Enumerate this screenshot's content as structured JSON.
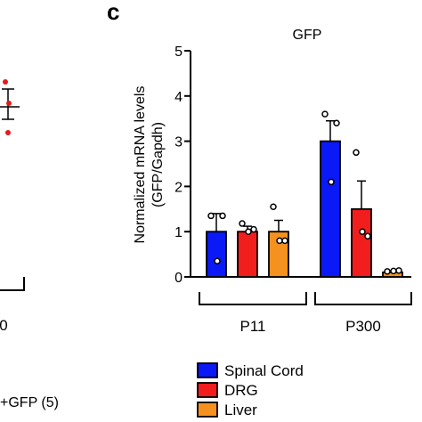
{
  "panel_label": "c",
  "left_fragment": {
    "tick_label": "0",
    "legend_label": "+GFP (5)"
  },
  "chart_data": {
    "type": "bar",
    "title": "GFP",
    "ylabel_line1": "Normalized mRNA levels",
    "ylabel_line2": "(GFP/Gapdh)",
    "ylim": [
      0,
      5
    ],
    "yticks": [
      "0",
      "1",
      "2",
      "3",
      "4",
      "5"
    ],
    "groups": [
      "P11",
      "P300"
    ],
    "series": [
      {
        "name": "Spinal Cord",
        "color": "#0a19f5",
        "values": [
          1.0,
          3.0
        ],
        "errors": [
          0.4,
          0.45
        ],
        "points": [
          [
            1.35,
            0.35,
            1.35
          ],
          [
            3.6,
            2.1,
            3.4
          ]
        ]
      },
      {
        "name": "DRG",
        "color": "#f21d1d",
        "values": [
          1.0,
          1.5
        ],
        "errors": [
          0.12,
          0.62
        ],
        "points": [
          [
            1.18,
            1.0,
            1.05
          ],
          [
            2.75,
            1.0,
            0.9
          ]
        ]
      },
      {
        "name": "Liver",
        "color": "#f5911e",
        "values": [
          1.0,
          0.1
        ],
        "errors": [
          0.25,
          0.03
        ],
        "points": [
          [
            1.55,
            0.8,
            0.8
          ],
          [
            0.12,
            0.13,
            0.14
          ]
        ]
      }
    ],
    "legend_position": "bottom"
  }
}
